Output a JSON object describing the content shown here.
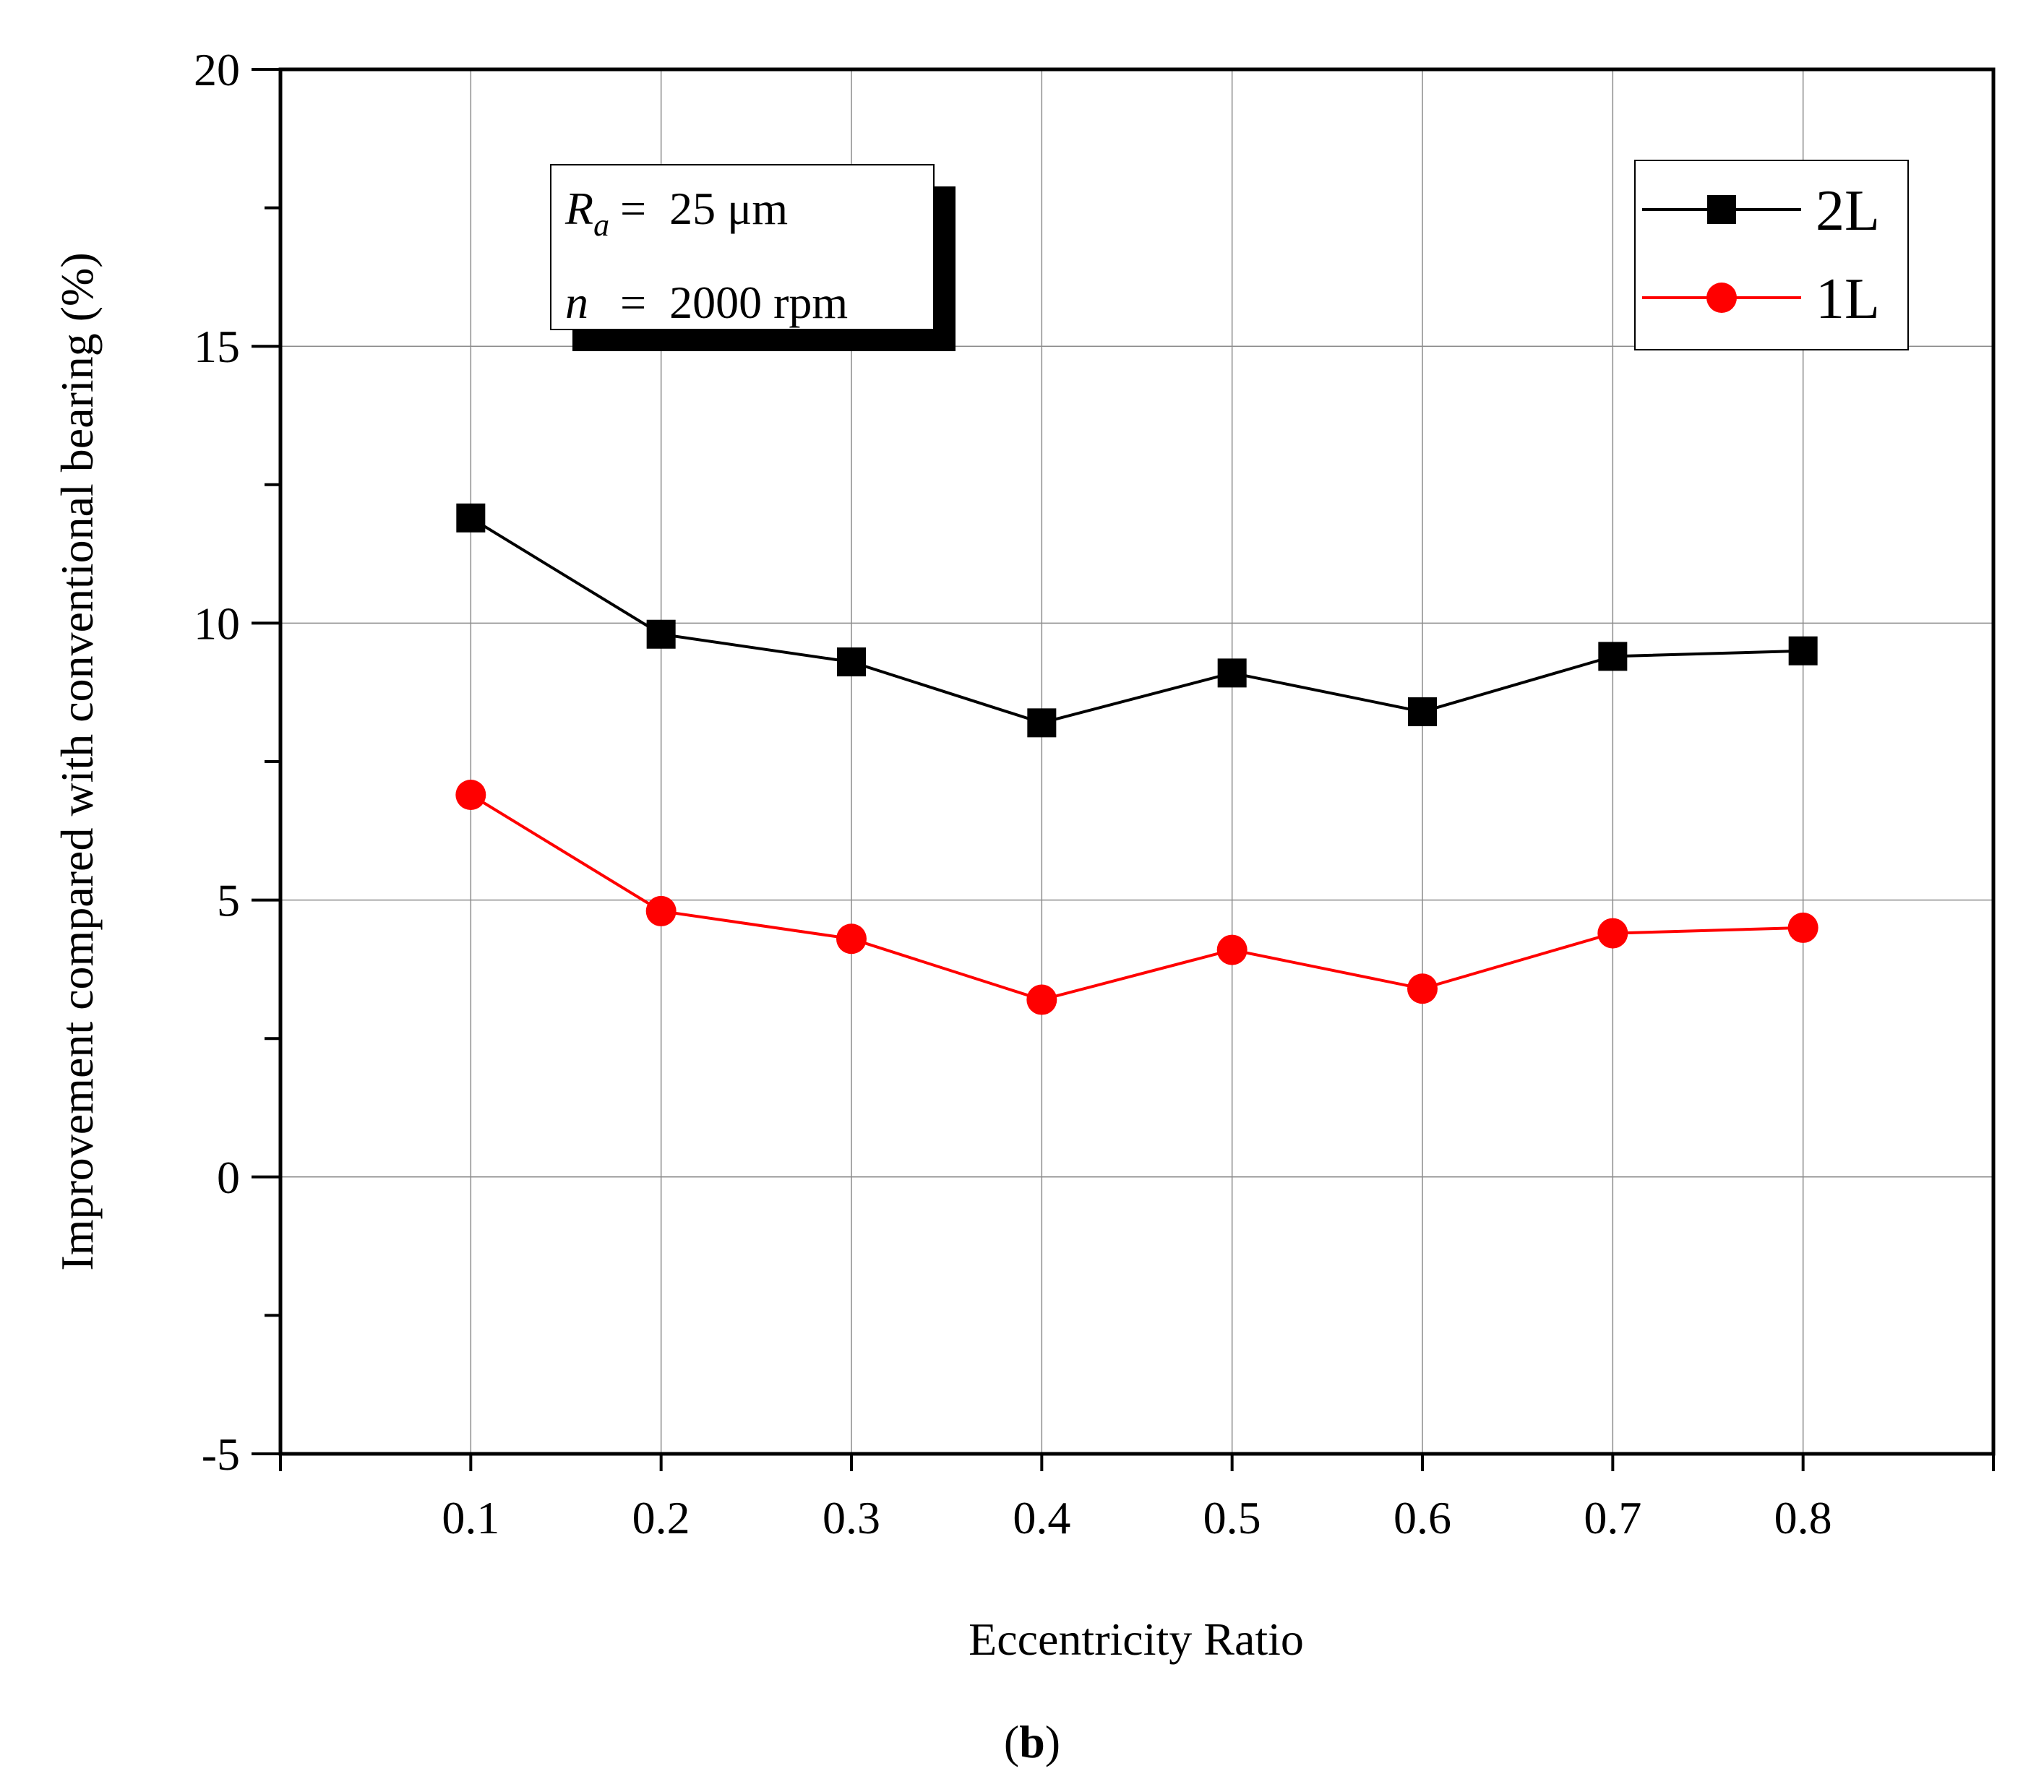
{
  "chart_data": {
    "type": "line",
    "title": "",
    "xlabel": "Eccentricity Ratio",
    "ylabel": "Improvement compared with conventional bearing (%)",
    "xlim": [
      0.0,
      0.9
    ],
    "ylim": [
      -5,
      20
    ],
    "x_ticks": [
      {
        "value": 0.1,
        "label": "0.1"
      },
      {
        "value": 0.2,
        "label": "0.2"
      },
      {
        "value": 0.3,
        "label": "0.3"
      },
      {
        "value": 0.4,
        "label": "0.4"
      },
      {
        "value": 0.5,
        "label": "0.5"
      },
      {
        "value": 0.6,
        "label": "0.6"
      },
      {
        "value": 0.7,
        "label": "0.7"
      },
      {
        "value": 0.8,
        "label": "0.8"
      }
    ],
    "y_ticks": [
      {
        "value": -5,
        "label": "-5"
      },
      {
        "value": 0,
        "label": "0"
      },
      {
        "value": 5,
        "label": "5"
      },
      {
        "value": 10,
        "label": "10"
      },
      {
        "value": 15,
        "label": "15"
      },
      {
        "value": 20,
        "label": "20"
      }
    ],
    "y_minor_step": 2.5,
    "grid": true,
    "legend_position": "top-right",
    "x": [
      0.1,
      0.2,
      0.3,
      0.4,
      0.5,
      0.6,
      0.7,
      0.8
    ],
    "series": [
      {
        "name": "2L",
        "marker": "square",
        "color": "#000000",
        "values": [
          11.9,
          9.8,
          9.3,
          8.2,
          9.1,
          8.4,
          9.4,
          9.5
        ]
      },
      {
        "name": "1L",
        "marker": "circle",
        "color": "#ff0000",
        "values": [
          6.9,
          4.8,
          4.3,
          3.2,
          4.1,
          3.4,
          4.4,
          4.5
        ]
      }
    ],
    "annotation": {
      "ra_symbol": "R",
      "ra_subscript": "a",
      "ra_value": "=  25 μm",
      "n_symbol": "n",
      "n_value": "=  2000 rpm"
    },
    "caption_open": "(",
    "caption_letter": "b",
    "caption_close": ")"
  }
}
